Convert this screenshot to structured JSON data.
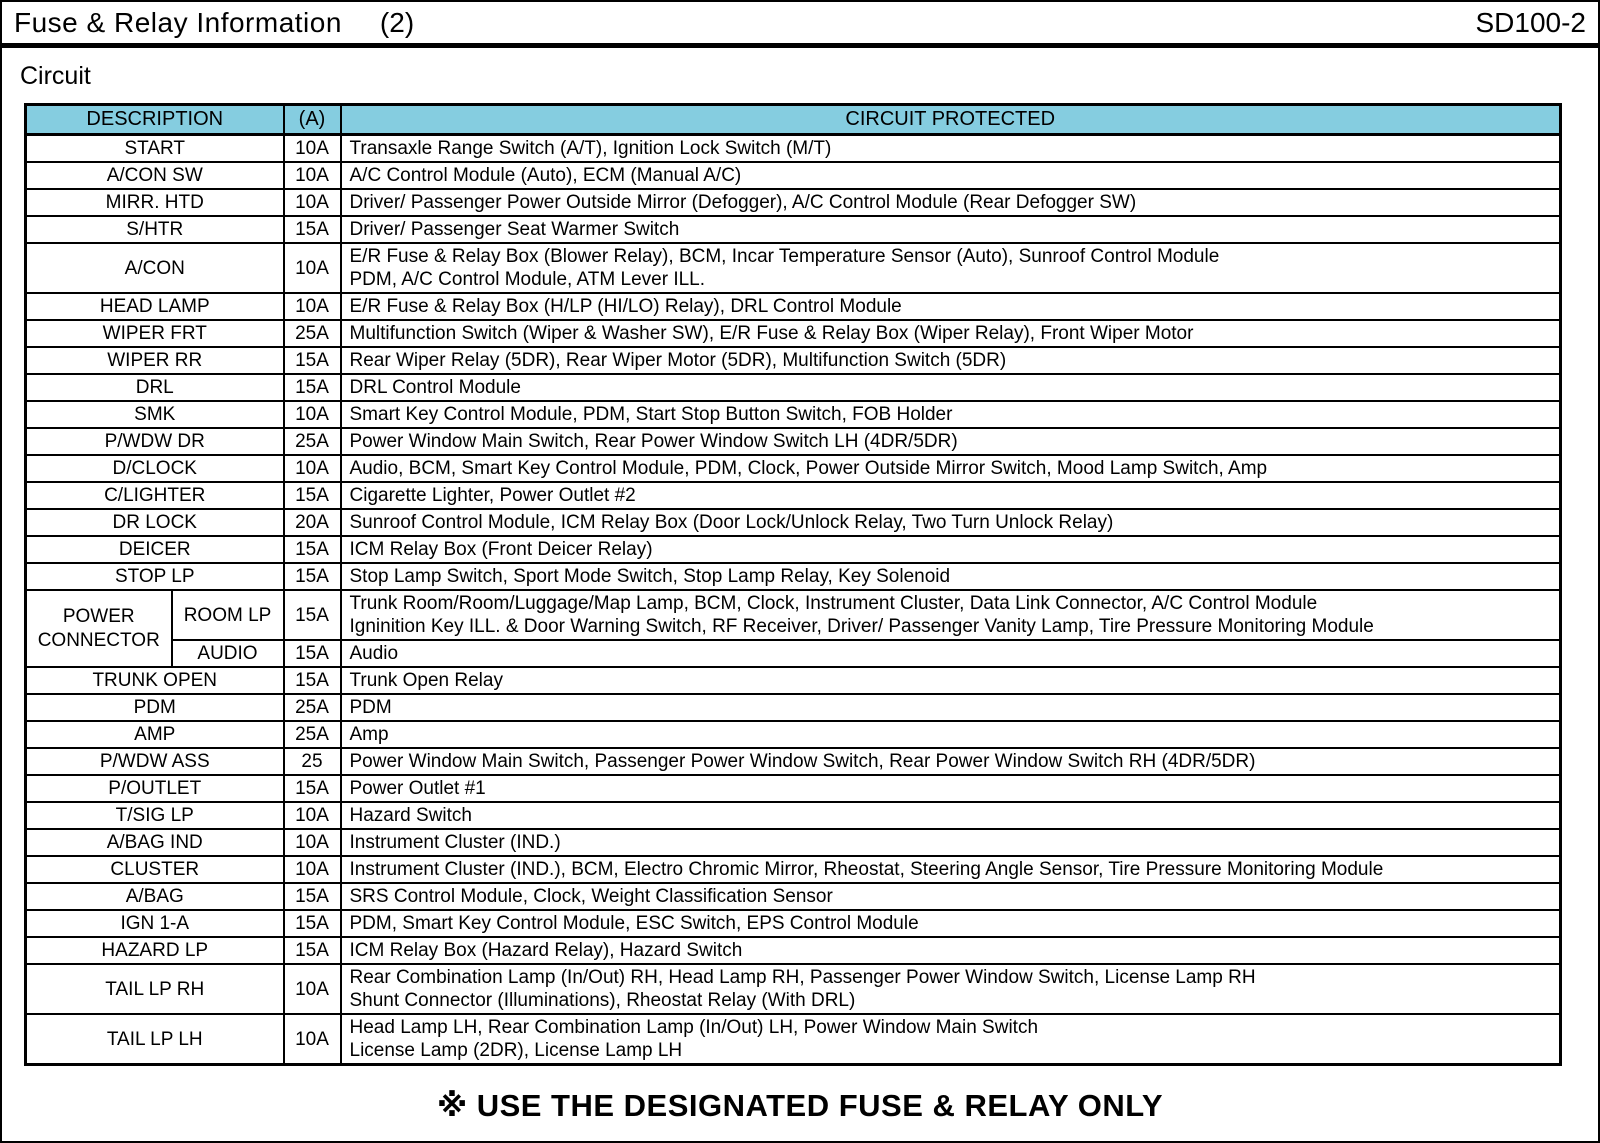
{
  "header": {
    "title": "Fuse & Relay Information",
    "title_num": "(2)",
    "code": "SD100-2"
  },
  "section_label": "Circuit",
  "colors": {
    "header_bg": "#85CDE0",
    "border": "#000000"
  },
  "table": {
    "columns": [
      "DESCRIPTION",
      "(A)",
      "CIRCUIT PROTECTED"
    ],
    "rows": [
      {
        "desc": "START",
        "amp": "10A",
        "circuit": [
          "Transaxle Range Switch (A/T), Ignition Lock Switch (M/T)"
        ]
      },
      {
        "desc": "A/CON SW",
        "amp": "10A",
        "circuit": [
          "A/C Control Module (Auto), ECM (Manual A/C)"
        ]
      },
      {
        "desc": "MIRR. HTD",
        "amp": "10A",
        "circuit": [
          "Driver/ Passenger Power Outside Mirror (Defogger), A/C Control Module (Rear Defogger SW)"
        ]
      },
      {
        "desc": "S/HTR",
        "amp": "15A",
        "circuit": [
          "Driver/ Passenger Seat Warmer Switch"
        ]
      },
      {
        "desc": "A/CON",
        "amp": "10A",
        "circuit": [
          "E/R Fuse & Relay Box (Blower Relay),  BCM, Incar Temperature Sensor (Auto), Sunroof Control Module",
          "PDM, A/C Control Module, ATM Lever ILL."
        ]
      },
      {
        "desc": "HEAD LAMP",
        "amp": "10A",
        "circuit": [
          "E/R Fuse & Relay Box (H/LP (HI/LO) Relay), DRL Control Module"
        ]
      },
      {
        "desc": "WIPER FRT",
        "amp": "25A",
        "circuit": [
          "Multifunction Switch (Wiper & Washer SW), E/R Fuse & Relay Box (Wiper Relay), Front Wiper Motor"
        ]
      },
      {
        "desc": "WIPER RR",
        "amp": "15A",
        "circuit": [
          "Rear Wiper Relay (5DR), Rear Wiper Motor (5DR), Multifunction Switch (5DR)"
        ]
      },
      {
        "desc": "DRL",
        "amp": "15A",
        "circuit": [
          "DRL Control Module"
        ]
      },
      {
        "desc": "SMK",
        "amp": "10A",
        "circuit": [
          "Smart Key Control Module, PDM, Start Stop Button Switch, FOB Holder"
        ]
      },
      {
        "desc": "P/WDW DR",
        "amp": "25A",
        "circuit": [
          "Power Window Main Switch, Rear Power Window Switch LH (4DR/5DR)"
        ]
      },
      {
        "desc": "D/CLOCK",
        "amp": "10A",
        "circuit": [
          "Audio, BCM, Smart Key Control Module, PDM, Clock, Power Outside Mirror Switch, Mood Lamp Switch, Amp"
        ]
      },
      {
        "desc": "C/LIGHTER",
        "amp": "15A",
        "circuit": [
          "Cigarette Lighter, Power Outlet #2"
        ]
      },
      {
        "desc": "DR LOCK",
        "amp": "20A",
        "circuit": [
          "Sunroof Control Module, ICM Relay Box (Door Lock/Unlock Relay, Two Turn Unlock Relay)"
        ]
      },
      {
        "desc": "DEICER",
        "amp": "15A",
        "circuit": [
          "ICM Relay Box (Front Deicer Relay)"
        ]
      },
      {
        "desc": "STOP LP",
        "amp": "15A",
        "circuit": [
          "Stop Lamp Switch, Sport Mode Switch, Stop Lamp Relay, Key Solenoid"
        ]
      },
      {
        "group": "POWER CONNECTOR",
        "desc": "ROOM LP",
        "amp": "15A",
        "circuit": [
          "Trunk Room/Room/Luggage/Map Lamp, BCM, Clock, Instrument Cluster, Data Link Connector, A/C Control Module",
          "Igninition Key ILL. & Door Warning Switch, RF Receiver, Driver/ Passenger Vanity Lamp, Tire Pressure Monitoring Module"
        ]
      },
      {
        "desc": "AUDIO",
        "amp": "15A",
        "circuit": [
          "Audio"
        ]
      },
      {
        "desc": "TRUNK OPEN",
        "amp": "15A",
        "circuit": [
          "Trunk Open Relay"
        ]
      },
      {
        "desc": "PDM",
        "amp": "25A",
        "circuit": [
          "PDM"
        ]
      },
      {
        "desc": "AMP",
        "amp": "25A",
        "circuit": [
          "Amp"
        ]
      },
      {
        "desc": "P/WDW ASS",
        "amp": "25",
        "circuit": [
          "Power Window Main Switch, Passenger Power Window Switch, Rear Power Window Switch RH (4DR/5DR)"
        ]
      },
      {
        "desc": "P/OUTLET",
        "amp": "15A",
        "circuit": [
          "Power Outlet #1"
        ]
      },
      {
        "desc": "T/SIG LP",
        "amp": "10A",
        "circuit": [
          "Hazard Switch"
        ]
      },
      {
        "desc": "A/BAG IND",
        "amp": "10A",
        "circuit": [
          "Instrument Cluster (IND.)"
        ]
      },
      {
        "desc": "CLUSTER",
        "amp": "10A",
        "circuit": [
          "Instrument Cluster (IND.), BCM, Electro Chromic Mirror, Rheostat, Steering Angle Sensor, Tire Pressure Monitoring Module"
        ]
      },
      {
        "desc": "A/BAG",
        "amp": "15A",
        "circuit": [
          "SRS Control Module, Clock, Weight Classification Sensor"
        ]
      },
      {
        "desc": "IGN 1-A",
        "amp": "15A",
        "circuit": [
          "PDM, Smart Key Control Module, ESC Switch, EPS Control Module"
        ]
      },
      {
        "desc": "HAZARD LP",
        "amp": "15A",
        "circuit": [
          "ICM Relay Box (Hazard Relay), Hazard Switch"
        ]
      },
      {
        "desc": "TAIL LP RH",
        "amp": "10A",
        "circuit": [
          "Rear Combination Lamp (In/Out) RH, Head Lamp RH, Passenger Power Window Switch, License Lamp RH",
          "Shunt Connector (Illuminations), Rheostat Relay (With DRL)"
        ]
      },
      {
        "desc": "TAIL LP LH",
        "amp": "10A",
        "circuit": [
          "Head Lamp LH, Rear Combination Lamp (In/Out) LH, Power Window Main Switch",
          "License Lamp (2DR), License Lamp LH"
        ]
      }
    ]
  },
  "footer_note": "※ USE THE DESIGNATED FUSE & RELAY ONLY"
}
